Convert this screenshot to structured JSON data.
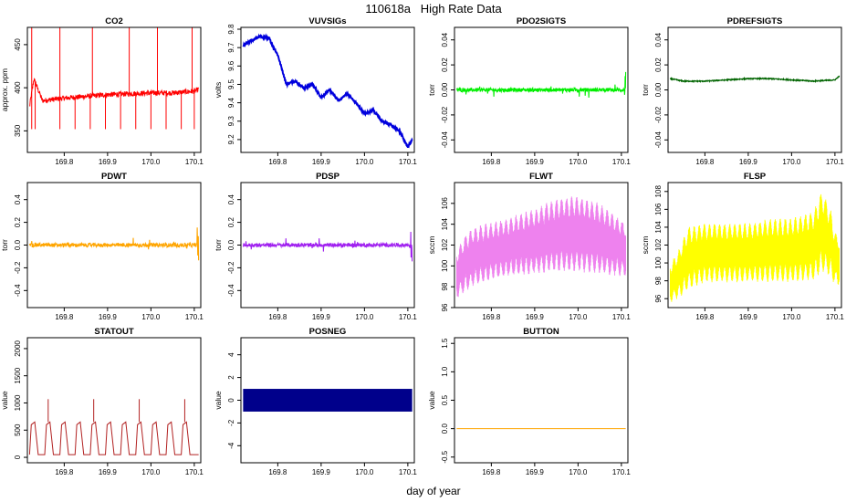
{
  "figure": {
    "title": "110618a   High Rate Data",
    "xlabel": "day of year"
  },
  "chart_data": [
    {
      "name": "CO2",
      "type": "line",
      "ylabel": "approx. ppm",
      "color": "#ff0000",
      "xlim": [
        169.715,
        170.115
      ],
      "ylim": [
        325,
        470
      ],
      "xticks": [
        "169.8",
        "169.9",
        "170.0",
        "170.1"
      ],
      "yticks": [
        "350",
        "400",
        "450"
      ],
      "x": [
        169.72,
        169.73,
        169.75,
        169.8,
        169.85,
        169.9,
        169.95,
        170.0,
        170.05,
        170.1,
        170.11
      ],
      "y": [
        378,
        410,
        385,
        388,
        390,
        392,
        393,
        394,
        394,
        396,
        398
      ],
      "base": 390,
      "spikes_down_to": 352,
      "spikes_up_to": 470
    },
    {
      "name": "VUVSIGs",
      "type": "line",
      "ylabel": "volts",
      "color": "#0000dd",
      "xlim": [
        169.715,
        170.115
      ],
      "ylim": [
        9.13,
        9.81
      ],
      "xticks": [
        "169.8",
        "169.9",
        "170.0",
        "170.1"
      ],
      "yticks": [
        "9.2",
        "9.3",
        "9.4",
        "9.5",
        "9.6",
        "9.7",
        "9.8"
      ],
      "x": [
        169.72,
        169.74,
        169.76,
        169.78,
        169.8,
        169.82,
        169.84,
        169.86,
        169.88,
        169.9,
        169.92,
        169.94,
        169.96,
        169.98,
        170.0,
        170.02,
        170.04,
        170.06,
        170.08,
        170.1,
        170.11
      ],
      "y": [
        9.71,
        9.74,
        9.76,
        9.75,
        9.66,
        9.5,
        9.52,
        9.48,
        9.5,
        9.43,
        9.47,
        9.41,
        9.45,
        9.4,
        9.34,
        9.36,
        9.3,
        9.28,
        9.25,
        9.16,
        9.2
      ]
    },
    {
      "name": "PDO2SIGTS",
      "type": "line",
      "ylabel": "torr",
      "color": "#00ee00",
      "xlim": [
        169.715,
        170.115
      ],
      "ylim": [
        -0.05,
        0.05
      ],
      "xticks": [
        "169.8",
        "169.9",
        "170.0",
        "170.1"
      ],
      "yticks": [
        "-0.04",
        "-0.02",
        "0.00",
        "0.02",
        "0.04"
      ],
      "x": [
        169.72,
        170.11
      ],
      "y": [
        0.0,
        0.0
      ]
    },
    {
      "name": "PDREFSIGTS",
      "type": "line",
      "ylabel": "torr",
      "color": "#006400",
      "xlim": [
        169.715,
        170.115
      ],
      "ylim": [
        -0.05,
        0.05
      ],
      "xticks": [
        "169.8",
        "169.9",
        "170.0",
        "170.1"
      ],
      "yticks": [
        "-0.04",
        "-0.02",
        "0.00",
        "0.02",
        "0.04"
      ],
      "x": [
        169.72,
        169.75,
        169.8,
        169.85,
        169.9,
        169.95,
        170.0,
        170.05,
        170.1,
        170.11
      ],
      "y": [
        0.009,
        0.007,
        0.007,
        0.008,
        0.009,
        0.009,
        0.008,
        0.007,
        0.008,
        0.011
      ]
    },
    {
      "name": "PDWT",
      "type": "line",
      "ylabel": "torr",
      "color": "#ffa500",
      "xlim": [
        169.715,
        170.115
      ],
      "ylim": [
        -0.55,
        0.55
      ],
      "xticks": [
        "169.8",
        "169.9",
        "170.0",
        "170.1"
      ],
      "yticks": [
        "-0.4",
        "-0.2",
        "0.0",
        "0.2",
        "0.4"
      ],
      "x": [
        169.72,
        170.11
      ],
      "y": [
        0.0,
        0.0
      ]
    },
    {
      "name": "PDSP",
      "type": "line",
      "ylabel": "torr",
      "color": "#a020f0",
      "xlim": [
        169.715,
        170.115
      ],
      "ylim": [
        -0.55,
        0.55
      ],
      "xticks": [
        "169.8",
        "169.9",
        "170.0",
        "170.1"
      ],
      "yticks": [
        "-0.4",
        "-0.2",
        "0.0",
        "0.2",
        "0.4"
      ],
      "x": [
        169.72,
        170.11
      ],
      "y": [
        0.0,
        0.0
      ]
    },
    {
      "name": "FLWT",
      "type": "area",
      "ylabel": "sccm",
      "color": "#ee82ee",
      "xlim": [
        169.715,
        170.115
      ],
      "ylim": [
        96,
        108
      ],
      "xticks": [
        "169.8",
        "169.9",
        "170.0",
        "170.1"
      ],
      "yticks": [
        "96",
        "98",
        "100",
        "102",
        "104",
        "106"
      ],
      "x": [
        169.72,
        169.74,
        169.76,
        169.8,
        169.85,
        169.9,
        169.95,
        170.0,
        170.05,
        170.1,
        170.11
      ],
      "ymin": [
        96.8,
        97.5,
        98.0,
        98.6,
        99.0,
        99.2,
        99.4,
        99.4,
        99.2,
        99.0,
        99.0
      ],
      "ymax": [
        101.5,
        103.0,
        103.8,
        104.2,
        104.8,
        105.5,
        106.5,
        106.8,
        106.0,
        104.5,
        104.2
      ]
    },
    {
      "name": "FLSP",
      "type": "area",
      "ylabel": "sccm",
      "color": "#ffff00",
      "xlim": [
        169.715,
        170.115
      ],
      "ylim": [
        95,
        109
      ],
      "xticks": [
        "169.8",
        "169.9",
        "170.0",
        "170.1"
      ],
      "yticks": [
        "96",
        "98",
        "100",
        "102",
        "104",
        "106",
        "108"
      ],
      "x": [
        169.72,
        169.74,
        169.76,
        169.8,
        169.85,
        169.9,
        169.95,
        170.0,
        170.05,
        170.07,
        170.09,
        170.1,
        170.11
      ],
      "ymin": [
        95.5,
        96.0,
        97.0,
        97.8,
        97.8,
        97.8,
        97.8,
        97.8,
        98.0,
        99.0,
        98.5,
        97.5,
        97.5
      ],
      "ymax": [
        100.0,
        101.5,
        104.0,
        104.5,
        104.5,
        104.5,
        105.0,
        105.0,
        105.8,
        108.2,
        106.0,
        103.5,
        103.0
      ]
    },
    {
      "name": "STATOUT",
      "type": "line",
      "ylabel": "value",
      "color": "#b22222",
      "xlim": [
        169.715,
        170.115
      ],
      "ylim": [
        -100,
        2200
      ],
      "xticks": [
        "169.8",
        "169.9",
        "170.0",
        "170.1"
      ],
      "yticks": [
        "0",
        "500",
        "1000",
        "1500",
        "2000"
      ],
      "x": [
        169.72,
        169.73,
        169.75,
        169.8,
        169.85,
        169.9,
        169.95,
        170.0,
        170.05,
        170.1,
        170.11
      ],
      "y": [
        700,
        50,
        650,
        50,
        620,
        60,
        620,
        50,
        620,
        50,
        50
      ],
      "peaks": [
        1070
      ]
    },
    {
      "name": "POSNEG",
      "type": "area",
      "ylabel": "value",
      "color": "#00008b",
      "xlim": [
        169.715,
        170.115
      ],
      "ylim": [
        -5.5,
        5.5
      ],
      "xticks": [
        "169.8",
        "169.9",
        "170.0",
        "170.1"
      ],
      "yticks": [
        "-4",
        "-2",
        "0",
        "2",
        "4"
      ],
      "x": [
        169.72,
        170.11
      ],
      "ymin": [
        -1,
        -1
      ],
      "ymax": [
        1,
        1
      ]
    },
    {
      "name": "BUTTON",
      "type": "line",
      "ylabel": "value",
      "color": "#ffa500",
      "xlim": [
        169.715,
        170.115
      ],
      "ylim": [
        -0.6,
        1.6
      ],
      "xticks": [
        "169.8",
        "169.9",
        "170.0",
        "170.1"
      ],
      "yticks": [
        "-0.5",
        "0.0",
        "0.5",
        "1.0",
        "1.5"
      ],
      "x": [
        169.72,
        170.11
      ],
      "y": [
        0.0,
        0.0
      ]
    }
  ]
}
